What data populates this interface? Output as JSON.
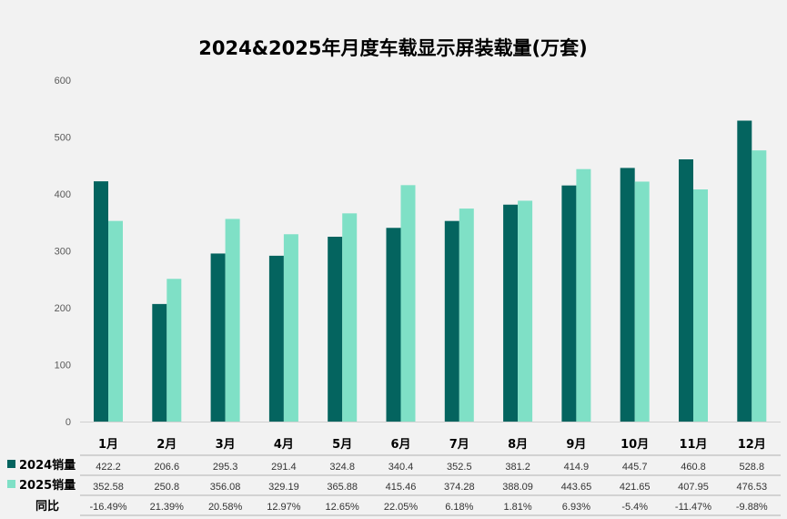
{
  "chart_data": {
    "type": "bar",
    "title": "2024&2025年月度车载显示屏装载量(万套)",
    "categories": [
      "1月",
      "2月",
      "3月",
      "4月",
      "5月",
      "6月",
      "7月",
      "8月",
      "9月",
      "10月",
      "11月",
      "12月"
    ],
    "series": [
      {
        "name": "2024销量",
        "color": "#04645f",
        "values": [
          422.2,
          206.6,
          295.3,
          291.4,
          324.8,
          340.4,
          352.5,
          381.2,
          414.9,
          445.7,
          460.8,
          528.8
        ],
        "labels": [
          "422.2",
          "206.6",
          "295.3",
          "291.4",
          "324.8",
          "340.4",
          "352.5",
          "381.2",
          "414.9",
          "445.7",
          "460.8",
          "528.8"
        ]
      },
      {
        "name": "2025销量",
        "color": "#7fe0c6",
        "values": [
          352.58,
          250.8,
          356.08,
          329.19,
          365.88,
          415.46,
          374.28,
          388.09,
          443.65,
          421.65,
          407.95,
          476.53
        ],
        "labels": [
          "352.58",
          "250.8",
          "356.08",
          "329.19",
          "365.88",
          "415.46",
          "374.28",
          "388.09",
          "443.65",
          "421.65",
          "407.95",
          "476.53"
        ]
      }
    ],
    "yoy": {
      "name": "同比",
      "values": [
        "-16.49%",
        "21.39%",
        "20.58%",
        "12.97%",
        "12.65%",
        "22.05%",
        "6.18%",
        "1.81%",
        "6.93%",
        "-5.4%",
        "-11.47%",
        "-9.88%"
      ]
    },
    "ylim": [
      0,
      600
    ],
    "yticks": [
      "0",
      "100",
      "200",
      "300",
      "400",
      "500",
      "600"
    ],
    "grid": false,
    "legend": "data-table-left"
  }
}
